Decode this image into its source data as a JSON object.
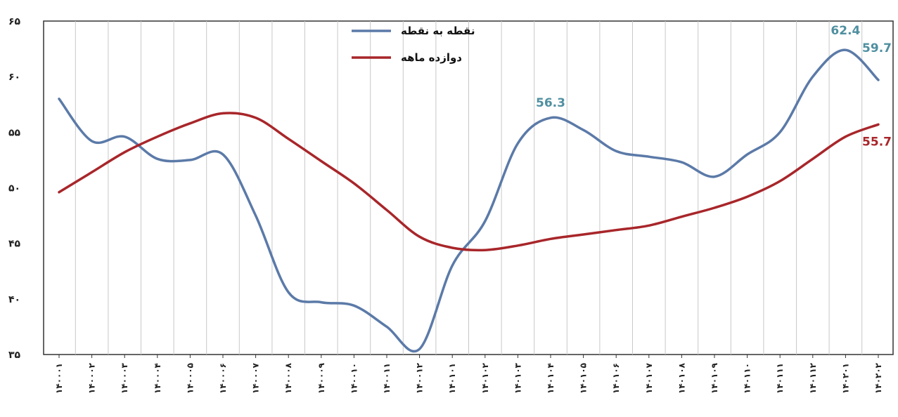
{
  "chart_data": {
    "type": "line",
    "categories": [
      "۱۴۰۰۰۱",
      "۱۴۰۰۰۲",
      "۱۴۰۰۰۳",
      "۱۴۰۰۰۴",
      "۱۴۰۰۰۵",
      "۱۴۰۰۰۶",
      "۱۴۰۰۰۷",
      "۱۴۰۰۰۸",
      "۱۴۰۰۰۹",
      "۱۴۰۰۱۰",
      "۱۴۰۰۱۱",
      "۱۴۰۰۱۲",
      "۱۴۰۱۰۱",
      "۱۴۰۱۰۲",
      "۱۴۰۱۰۳",
      "۱۴۰۱۰۴",
      "۱۴۰۱۰۵",
      "۱۴۰۱۰۶",
      "۱۴۰۱۰۷",
      "۱۴۰۱۰۸",
      "۱۴۰۱۰۹",
      "۱۴۰۱۱۰",
      "۱۴۰۱۱۱",
      "۱۴۰۱۱۲",
      "۱۴۰۲۰۱",
      "۱۴۰۲۰۲"
    ],
    "series": [
      {
        "name": "نقطه به نقطه",
        "color": "#5b7aa8",
        "values": [
          58.0,
          54.2,
          54.6,
          52.6,
          52.5,
          53.0,
          47.5,
          40.6,
          39.7,
          39.4,
          37.5,
          35.5,
          43.0,
          47.0,
          54.0,
          56.3,
          55.2,
          53.3,
          52.8,
          52.3,
          51.0,
          53.0,
          55.0,
          60.0,
          62.4,
          59.7
        ]
      },
      {
        "name": "دوازده ماهه",
        "color": "#a8262a",
        "values": [
          49.6,
          51.4,
          53.2,
          54.6,
          55.8,
          56.7,
          56.3,
          54.4,
          52.4,
          50.4,
          48.0,
          45.6,
          44.6,
          44.4,
          44.8,
          45.4,
          45.8,
          46.2,
          46.6,
          47.4,
          48.2,
          49.2,
          50.6,
          52.6,
          54.6,
          55.7
        ]
      }
    ],
    "y_ticks": [
      "۳۵",
      "۴۰",
      "۴۵",
      "۵۰",
      "۵۵",
      "۶۰",
      "۶۵"
    ],
    "ylim": [
      35,
      65
    ],
    "legend_position": "top-center",
    "grid": "vertical",
    "annotations": [
      {
        "text": "56.3",
        "series": 0,
        "index": 15
      },
      {
        "text": "62.4",
        "series": 0,
        "index": 24
      },
      {
        "text": "59.7",
        "series": 0,
        "index": 25
      },
      {
        "text": "55.7",
        "series": 1,
        "index": 25
      }
    ]
  }
}
